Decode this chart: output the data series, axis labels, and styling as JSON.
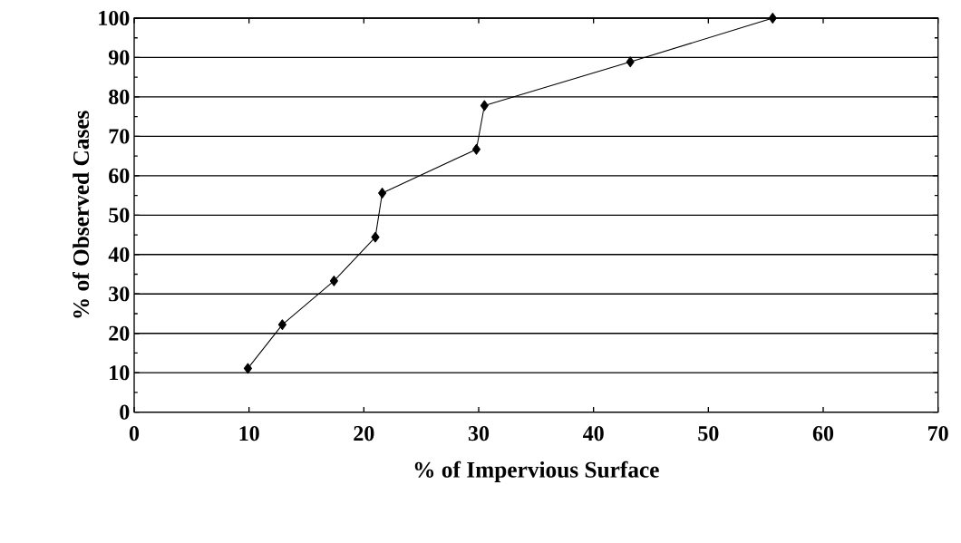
{
  "chart_data": {
    "type": "line",
    "xlabel": "% of Impervious Surface",
    "ylabel": "% of Observed Cases",
    "x": [
      9.9,
      12.9,
      17.4,
      21.0,
      21.6,
      29.8,
      30.5,
      43.2,
      55.6
    ],
    "series": [
      {
        "color": "#000000",
        "values": [
          11.1,
          22.2,
          33.3,
          44.4,
          55.6,
          66.7,
          77.8,
          88.9,
          100
        ]
      }
    ],
    "xlim": [
      0,
      70
    ],
    "ylim": [
      0,
      100
    ],
    "xticks": [
      0,
      10,
      20,
      30,
      40,
      50,
      60,
      70
    ],
    "yticks": [
      0,
      10,
      20,
      30,
      40,
      50,
      60,
      70,
      80,
      90,
      100
    ],
    "grid": "y",
    "marker": "diamond",
    "line_style": "solid"
  }
}
